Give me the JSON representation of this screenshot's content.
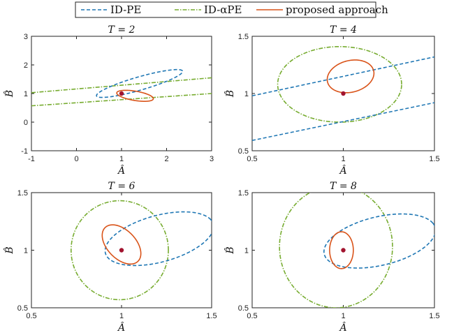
{
  "colors": {
    "id_pe": "#1f77b4",
    "id_alpha_pe": "#77ac30",
    "proposed": "#d95319",
    "marker": "#a2142f"
  },
  "legend": {
    "placement": "top-center",
    "entries": [
      "ID-PE",
      "ID-αPE",
      "proposed approach"
    ]
  },
  "chart_data": [
    {
      "type": "line",
      "title": "T = 2",
      "xlabel": "Â",
      "ylabel": "B̂",
      "xlim": [
        -1,
        3
      ],
      "ylim": [
        -1,
        3
      ],
      "xticks": [
        "-1",
        "0",
        "1",
        "2",
        "3"
      ],
      "yticks": [
        "-1",
        "0",
        "1",
        "2",
        "3"
      ],
      "center": [
        1,
        1
      ],
      "series": [
        {
          "name": "ID-PE",
          "shape": "ellipse",
          "center": [
            1.4,
            1.35
          ],
          "semi_axes": [
            1.05,
            0.22
          ],
          "angle_deg": 25
        },
        {
          "name": "ID-αPE",
          "shape": "lines",
          "lines": [
            [
              [
                -1,
                1.03
              ],
              [
                3,
                1.55
              ]
            ],
            [
              [
                -1,
                0.57
              ],
              [
                3,
                1.0
              ]
            ]
          ]
        },
        {
          "name": "proposed approach",
          "shape": "ellipse",
          "center": [
            1.3,
            0.92
          ],
          "semi_axes": [
            0.42,
            0.16
          ],
          "angle_deg": -16
        }
      ]
    },
    {
      "type": "line",
      "title": "T = 4",
      "xlabel": "Â",
      "ylabel": "B̂",
      "xlim": [
        0.5,
        1.5
      ],
      "ylim": [
        0.5,
        1.5
      ],
      "xticks": [
        "0.5",
        "1",
        "1.5"
      ],
      "yticks": [
        "0.5",
        "1",
        "1.5"
      ],
      "center": [
        1,
        1
      ],
      "series": [
        {
          "name": "ID-PE",
          "shape": "lines",
          "lines": [
            [
              [
                0.5,
                0.98
              ],
              [
                1.5,
                1.32
              ]
            ],
            [
              [
                0.5,
                0.59
              ],
              [
                1.5,
                0.92
              ]
            ]
          ]
        },
        {
          "name": "ID-αPE",
          "shape": "ellipse",
          "center": [
            0.98,
            1.08
          ],
          "semi_axes": [
            0.34,
            0.33
          ],
          "angle_deg": 0
        },
        {
          "name": "proposed approach",
          "shape": "ellipse",
          "center": [
            1.04,
            1.15
          ],
          "semi_axes": [
            0.15,
            0.12
          ],
          "angle_deg": 60
        }
      ]
    },
    {
      "type": "line",
      "title": "T = 6",
      "xlabel": "Â",
      "ylabel": "B̂",
      "xlim": [
        0.5,
        1.5
      ],
      "ylim": [
        0.5,
        1.5
      ],
      "xticks": [
        "0.5",
        "1",
        "1.5"
      ],
      "yticks": [
        "0.5",
        "1",
        "1.5"
      ],
      "center": [
        1,
        1
      ],
      "series": [
        {
          "name": "ID-PE",
          "shape": "ellipse",
          "center": [
            1.21,
            1.1
          ],
          "semi_axes": [
            0.33,
            0.19
          ],
          "angle_deg": 30
        },
        {
          "name": "ID-αPE",
          "shape": "ellipse",
          "center": [
            0.99,
            1.0
          ],
          "semi_axes": [
            0.27,
            0.43
          ],
          "angle_deg": 0
        },
        {
          "name": "proposed approach",
          "shape": "ellipse",
          "center": [
            1.0,
            1.05
          ],
          "semi_axes": [
            0.09,
            0.18
          ],
          "angle_deg": 22
        }
      ]
    },
    {
      "type": "line",
      "title": "T = 8",
      "xlabel": "Â",
      "ylabel": "B̂",
      "xlim": [
        0.5,
        1.5
      ],
      "ylim": [
        0.5,
        1.5
      ],
      "xticks": [
        "0.5",
        "1",
        "1.5"
      ],
      "yticks": [
        "0.5",
        "1",
        "1.5"
      ],
      "center": [
        1,
        1
      ],
      "series": [
        {
          "name": "ID-PE",
          "shape": "ellipse",
          "center": [
            1.2,
            1.08
          ],
          "semi_axes": [
            0.33,
            0.2
          ],
          "angle_deg": 28
        },
        {
          "name": "ID-αPE",
          "shape": "ellipse",
          "center": [
            0.96,
            1.03
          ],
          "semi_axes": [
            0.31,
            0.53
          ],
          "angle_deg": 0
        },
        {
          "name": "proposed approach",
          "shape": "ellipse",
          "center": [
            0.99,
            1.0
          ],
          "semi_axes": [
            0.065,
            0.16
          ],
          "angle_deg": 0
        }
      ]
    }
  ]
}
